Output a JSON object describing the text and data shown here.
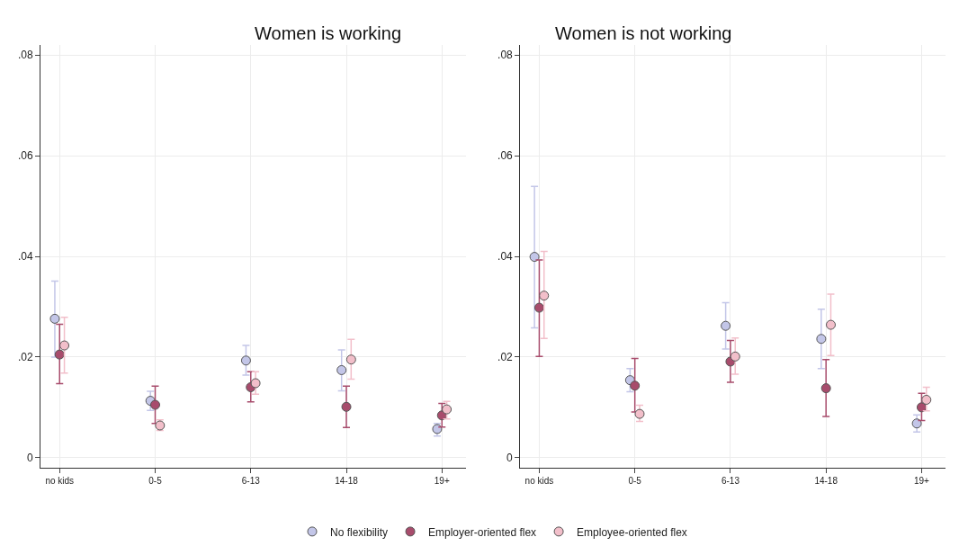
{
  "chart_data": [
    {
      "type": "scatter",
      "title": "Women is working",
      "categories": [
        "no kids",
        "0-5",
        "6-13",
        "14-18",
        "19+"
      ],
      "ylim": [
        -0.002,
        0.082
      ],
      "yticks": [
        {
          "value": 0,
          "label": "0"
        },
        {
          "value": 0.02,
          "label": ".02"
        },
        {
          "value": 0.04,
          "label": ".04"
        },
        {
          "value": 0.06,
          "label": ".06"
        },
        {
          "value": 0.08,
          "label": ".08"
        }
      ],
      "grid": true,
      "legend": "bottom",
      "marker": "circle",
      "series": [
        {
          "name": "No flexibility",
          "color": "#c3c6e8",
          "values": [
            0.0276,
            0.0113,
            0.0193,
            0.0174,
            0.0057
          ],
          "errors": [
            [
              0.02,
              0.0351
            ],
            [
              0.0094,
              0.0132
            ],
            [
              0.0164,
              0.0223
            ],
            [
              0.0133,
              0.0214
            ],
            [
              0.0043,
              0.0068
            ]
          ]
        },
        {
          "name": "Employer-oriented flex",
          "color": "#a84c6c",
          "values": [
            0.0205,
            0.0105,
            0.014,
            0.0101,
            0.0084
          ],
          "errors": [
            [
              0.0147,
              0.0265
            ],
            [
              0.0068,
              0.0142
            ],
            [
              0.0111,
              0.0171
            ],
            [
              0.006,
              0.0142
            ],
            [
              0.0061,
              0.0108
            ]
          ]
        },
        {
          "name": "Employee-oriented flex",
          "color": "#f2bfca",
          "values": [
            0.0223,
            0.0064,
            0.0148,
            0.0195,
            0.0096
          ],
          "errors": [
            [
              0.0168,
              0.0279
            ],
            [
              0.0054,
              0.0075
            ],
            [
              0.0126,
              0.0171
            ],
            [
              0.0156,
              0.0235
            ],
            [
              0.0077,
              0.0112
            ]
          ]
        }
      ]
    },
    {
      "type": "scatter",
      "title": "Women is not working",
      "categories": [
        "no kids",
        "0-5",
        "6-13",
        "14-18",
        "19+"
      ],
      "ylim": [
        -0.002,
        0.082
      ],
      "yticks": [
        {
          "value": 0,
          "label": "0"
        },
        {
          "value": 0.02,
          "label": ".02"
        },
        {
          "value": 0.04,
          "label": ".04"
        },
        {
          "value": 0.06,
          "label": ".06"
        },
        {
          "value": 0.08,
          "label": ".08"
        }
      ],
      "grid": true,
      "legend": "bottom",
      "marker": "circle",
      "series": [
        {
          "name": "No flexibility",
          "color": "#c3c6e8",
          "values": [
            0.0399,
            0.0154,
            0.0262,
            0.0236,
            0.0068
          ],
          "errors": [
            [
              0.0258,
              0.0539
            ],
            [
              0.0131,
              0.0177
            ],
            [
              0.0216,
              0.0308
            ],
            [
              0.0177,
              0.0295
            ],
            [
              0.0051,
              0.0085
            ]
          ]
        },
        {
          "name": "Employer-oriented flex",
          "color": "#a84c6c",
          "values": [
            0.0298,
            0.0143,
            0.0191,
            0.0138,
            0.01
          ],
          "errors": [
            [
              0.0201,
              0.0393
            ],
            [
              0.0091,
              0.0197
            ],
            [
              0.015,
              0.0233
            ],
            [
              0.0082,
              0.0195
            ],
            [
              0.0074,
              0.0128
            ]
          ]
        },
        {
          "name": "Employee-oriented flex",
          "color": "#f2bfca",
          "values": [
            0.0322,
            0.0087,
            0.0201,
            0.0264,
            0.0115
          ],
          "errors": [
            [
              0.0237,
              0.041
            ],
            [
              0.0072,
              0.0104
            ],
            [
              0.0166,
              0.0238
            ],
            [
              0.0203,
              0.0325
            ],
            [
              0.0093,
              0.014
            ]
          ]
        }
      ]
    }
  ]
}
